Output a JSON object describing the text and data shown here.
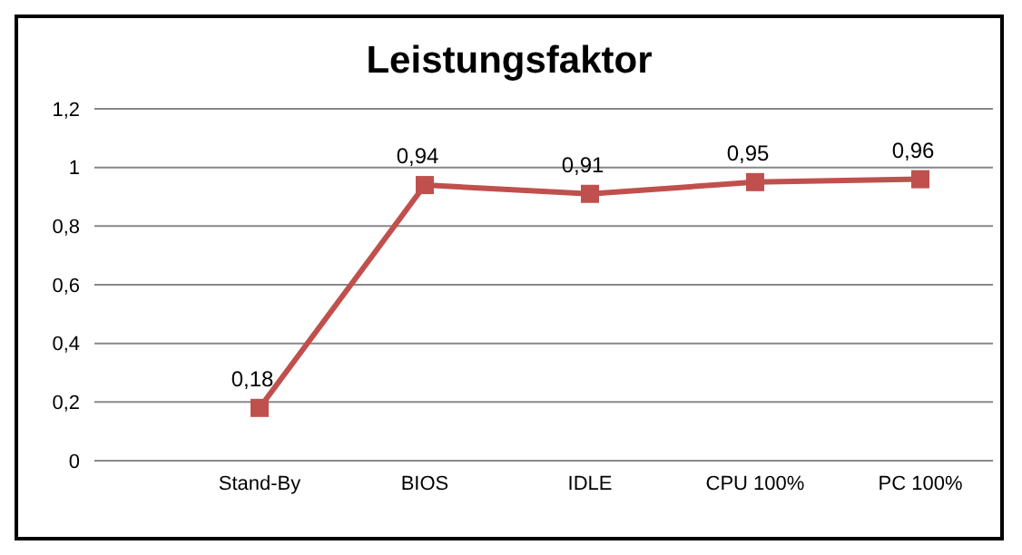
{
  "chart_data": {
    "type": "line",
    "title": "Leistungsfaktor",
    "categories": [
      null,
      "Stand-By",
      "BIOS",
      "IDLE",
      "CPU 100%",
      "PC 100%"
    ],
    "series": [
      {
        "color": "#c0504d",
        "values": [
          null,
          0.18,
          0.94,
          0.91,
          0.95,
          0.96
        ],
        "value_labels": [
          null,
          "0,18",
          "0,94",
          "0,91",
          "0,95",
          "0,96"
        ]
      }
    ],
    "ylim": [
      0,
      1.2
    ],
    "yticks": [
      {
        "value": 0,
        "label": "0"
      },
      {
        "value": 0.2,
        "label": "0,2"
      },
      {
        "value": 0.4,
        "label": "0,4"
      },
      {
        "value": 0.6,
        "label": "0,6"
      },
      {
        "value": 0.8,
        "label": "0,8"
      },
      {
        "value": 1,
        "label": "1"
      },
      {
        "value": 1.2,
        "label": "1,2"
      }
    ],
    "grid": "y",
    "marker": "square",
    "line_style": "solid",
    "legend": false
  }
}
